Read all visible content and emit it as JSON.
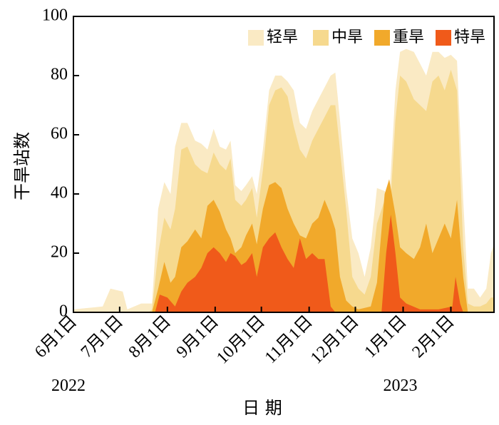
{
  "chart_data": {
    "type": "area",
    "stacked": true,
    "xlabel": "日 期",
    "ylabel": "干旱站数",
    "ylim": [
      0,
      100
    ],
    "yticks": [
      0,
      20,
      40,
      60,
      80,
      100
    ],
    "xlim": [
      "2022-06-01",
      "2023-03-01"
    ],
    "xticks": [
      {
        "date": "2022-06-01",
        "label": "6月1日"
      },
      {
        "date": "2022-07-01",
        "label": "7月1日"
      },
      {
        "date": "2022-08-01",
        "label": "8月1日"
      },
      {
        "date": "2022-09-01",
        "label": "9月1日"
      },
      {
        "date": "2022-10-01",
        "label": "10月1日"
      },
      {
        "date": "2022-11-01",
        "label": "11月1日"
      },
      {
        "date": "2022-12-01",
        "label": "12月1日"
      },
      {
        "date": "2023-01-01",
        "label": "1月1日"
      },
      {
        "date": "2023-02-01",
        "label": "2月1日"
      }
    ],
    "year_labels": [
      {
        "date": "2022-06-01",
        "label": "2022"
      },
      {
        "date": "2023-01-01",
        "label": "2023"
      }
    ],
    "legend_position": "top-right",
    "series": [
      {
        "name": "轻旱",
        "color": "#faeac4",
        "points": [
          [
            "2022-06-01",
            1
          ],
          [
            "2022-06-20",
            2
          ],
          [
            "2022-06-25",
            8
          ],
          [
            "2022-07-03",
            7
          ],
          [
            "2022-07-06",
            1
          ],
          [
            "2022-07-15",
            3
          ],
          [
            "2022-07-22",
            3
          ],
          [
            "2022-07-26",
            35
          ],
          [
            "2022-07-30",
            44
          ],
          [
            "2022-08-03",
            40
          ],
          [
            "2022-08-06",
            56
          ],
          [
            "2022-08-10",
            64
          ],
          [
            "2022-08-14",
            64
          ],
          [
            "2022-08-19",
            58
          ],
          [
            "2022-08-23",
            57
          ],
          [
            "2022-08-27",
            55
          ],
          [
            "2022-08-31",
            62
          ],
          [
            "2022-09-04",
            56
          ],
          [
            "2022-09-08",
            55
          ],
          [
            "2022-09-11",
            58
          ],
          [
            "2022-09-14",
            43
          ],
          [
            "2022-09-18",
            41
          ],
          [
            "2022-09-21",
            43
          ],
          [
            "2022-09-25",
            46
          ],
          [
            "2022-09-28",
            40
          ],
          [
            "2022-10-02",
            55
          ],
          [
            "2022-10-06",
            75
          ],
          [
            "2022-10-10",
            80
          ],
          [
            "2022-10-14",
            80
          ],
          [
            "2022-10-18",
            78
          ],
          [
            "2022-10-22",
            75
          ],
          [
            "2022-10-26",
            64
          ],
          [
            "2022-10-30",
            62
          ],
          [
            "2022-11-03",
            68
          ],
          [
            "2022-11-07",
            72
          ],
          [
            "2022-11-11",
            76
          ],
          [
            "2022-11-15",
            80
          ],
          [
            "2022-11-18",
            81
          ],
          [
            "2022-11-21",
            65
          ],
          [
            "2022-11-25",
            42
          ],
          [
            "2022-11-29",
            25
          ],
          [
            "2022-12-03",
            20
          ],
          [
            "2022-12-07",
            12
          ],
          [
            "2022-12-11",
            22
          ],
          [
            "2022-12-15",
            42
          ],
          [
            "2022-12-20",
            41
          ],
          [
            "2022-12-23",
            38
          ],
          [
            "2022-12-27",
            75
          ],
          [
            "2022-12-30",
            88
          ],
          [
            "2023-01-03",
            89
          ],
          [
            "2023-01-08",
            88
          ],
          [
            "2023-01-12",
            84
          ],
          [
            "2023-01-16",
            80
          ],
          [
            "2023-01-20",
            88
          ],
          [
            "2023-01-24",
            88
          ],
          [
            "2023-01-28",
            86
          ],
          [
            "2023-02-01",
            87
          ],
          [
            "2023-02-05",
            85
          ],
          [
            "2023-02-09",
            38
          ],
          [
            "2023-02-12",
            8
          ],
          [
            "2023-02-16",
            8
          ],
          [
            "2023-02-20",
            5
          ],
          [
            "2023-02-24",
            8
          ],
          [
            "2023-02-27",
            20
          ],
          [
            "2023-03-01",
            23
          ]
        ]
      },
      {
        "name": "中旱",
        "color": "#f6d98e",
        "points": [
          [
            "2022-06-01",
            0
          ],
          [
            "2022-07-20",
            0
          ],
          [
            "2022-07-22",
            1
          ],
          [
            "2022-07-26",
            20
          ],
          [
            "2022-07-30",
            32
          ],
          [
            "2022-08-03",
            28
          ],
          [
            "2022-08-06",
            35
          ],
          [
            "2022-08-10",
            55
          ],
          [
            "2022-08-14",
            56
          ],
          [
            "2022-08-19",
            50
          ],
          [
            "2022-08-23",
            48
          ],
          [
            "2022-08-27",
            47
          ],
          [
            "2022-08-31",
            54
          ],
          [
            "2022-09-04",
            50
          ],
          [
            "2022-09-08",
            48
          ],
          [
            "2022-09-11",
            52
          ],
          [
            "2022-09-14",
            38
          ],
          [
            "2022-09-18",
            36
          ],
          [
            "2022-09-21",
            38
          ],
          [
            "2022-09-25",
            42
          ],
          [
            "2022-09-28",
            32
          ],
          [
            "2022-10-02",
            48
          ],
          [
            "2022-10-06",
            70
          ],
          [
            "2022-10-10",
            75
          ],
          [
            "2022-10-14",
            76
          ],
          [
            "2022-10-18",
            73
          ],
          [
            "2022-10-22",
            63
          ],
          [
            "2022-10-26",
            55
          ],
          [
            "2022-10-30",
            52
          ],
          [
            "2022-11-03",
            58
          ],
          [
            "2022-11-07",
            62
          ],
          [
            "2022-11-11",
            66
          ],
          [
            "2022-11-15",
            70
          ],
          [
            "2022-11-18",
            70
          ],
          [
            "2022-11-21",
            55
          ],
          [
            "2022-11-25",
            35
          ],
          [
            "2022-11-29",
            12
          ],
          [
            "2022-12-03",
            8
          ],
          [
            "2022-12-07",
            6
          ],
          [
            "2022-12-11",
            12
          ],
          [
            "2022-12-15",
            30
          ],
          [
            "2022-12-20",
            38
          ],
          [
            "2022-12-23",
            30
          ],
          [
            "2022-12-27",
            65
          ],
          [
            "2022-12-30",
            80
          ],
          [
            "2023-01-03",
            78
          ],
          [
            "2023-01-08",
            72
          ],
          [
            "2023-01-12",
            70
          ],
          [
            "2023-01-16",
            68
          ],
          [
            "2023-01-20",
            78
          ],
          [
            "2023-01-24",
            80
          ],
          [
            "2023-01-28",
            75
          ],
          [
            "2023-02-01",
            82
          ],
          [
            "2023-02-05",
            75
          ],
          [
            "2023-02-09",
            22
          ],
          [
            "2023-02-12",
            3
          ],
          [
            "2023-02-16",
            2
          ],
          [
            "2023-02-20",
            2
          ],
          [
            "2023-02-24",
            3
          ],
          [
            "2023-02-27",
            5
          ],
          [
            "2023-03-01",
            5
          ]
        ]
      },
      {
        "name": "重旱",
        "color": "#f1a92b",
        "points": [
          [
            "2022-06-01",
            0
          ],
          [
            "2022-07-22",
            0
          ],
          [
            "2022-07-26",
            8
          ],
          [
            "2022-07-30",
            17
          ],
          [
            "2022-08-03",
            10
          ],
          [
            "2022-08-06",
            12
          ],
          [
            "2022-08-10",
            22
          ],
          [
            "2022-08-14",
            24
          ],
          [
            "2022-08-19",
            28
          ],
          [
            "2022-08-23",
            25
          ],
          [
            "2022-08-27",
            36
          ],
          [
            "2022-08-31",
            38
          ],
          [
            "2022-09-04",
            34
          ],
          [
            "2022-09-08",
            28
          ],
          [
            "2022-09-11",
            25
          ],
          [
            "2022-09-14",
            20
          ],
          [
            "2022-09-18",
            22
          ],
          [
            "2022-09-21",
            26
          ],
          [
            "2022-09-25",
            30
          ],
          [
            "2022-09-28",
            23
          ],
          [
            "2022-10-02",
            35
          ],
          [
            "2022-10-06",
            43
          ],
          [
            "2022-10-10",
            44
          ],
          [
            "2022-10-14",
            42
          ],
          [
            "2022-10-18",
            35
          ],
          [
            "2022-10-22",
            30
          ],
          [
            "2022-10-26",
            26
          ],
          [
            "2022-10-30",
            25
          ],
          [
            "2022-11-03",
            30
          ],
          [
            "2022-11-07",
            32
          ],
          [
            "2022-11-11",
            38
          ],
          [
            "2022-11-15",
            33
          ],
          [
            "2022-11-18",
            28
          ],
          [
            "2022-11-21",
            12
          ],
          [
            "2022-11-25",
            4
          ],
          [
            "2022-11-29",
            2
          ],
          [
            "2022-12-03",
            1
          ],
          [
            "2022-12-11",
            2
          ],
          [
            "2022-12-15",
            10
          ],
          [
            "2022-12-20",
            40
          ],
          [
            "2022-12-23",
            45
          ],
          [
            "2022-12-27",
            33
          ],
          [
            "2022-12-30",
            22
          ],
          [
            "2023-01-03",
            20
          ],
          [
            "2023-01-08",
            18
          ],
          [
            "2023-01-12",
            22
          ],
          [
            "2023-01-16",
            30
          ],
          [
            "2023-01-20",
            20
          ],
          [
            "2023-01-24",
            25
          ],
          [
            "2023-01-28",
            30
          ],
          [
            "2023-02-01",
            25
          ],
          [
            "2023-02-05",
            38
          ],
          [
            "2023-02-09",
            12
          ],
          [
            "2023-02-12",
            0
          ],
          [
            "2023-03-01",
            0
          ]
        ]
      },
      {
        "name": "特旱",
        "color": "#f05a1a",
        "points": [
          [
            "2022-06-01",
            0
          ],
          [
            "2022-07-24",
            0
          ],
          [
            "2022-07-27",
            6
          ],
          [
            "2022-08-01",
            5
          ],
          [
            "2022-08-06",
            2
          ],
          [
            "2022-08-10",
            7
          ],
          [
            "2022-08-14",
            10
          ],
          [
            "2022-08-19",
            12
          ],
          [
            "2022-08-23",
            15
          ],
          [
            "2022-08-27",
            20
          ],
          [
            "2022-08-31",
            22
          ],
          [
            "2022-09-04",
            20
          ],
          [
            "2022-09-08",
            17
          ],
          [
            "2022-09-11",
            20
          ],
          [
            "2022-09-14",
            19
          ],
          [
            "2022-09-18",
            16
          ],
          [
            "2022-09-21",
            17
          ],
          [
            "2022-09-25",
            20
          ],
          [
            "2022-09-28",
            12
          ],
          [
            "2022-10-02",
            22
          ],
          [
            "2022-10-06",
            25
          ],
          [
            "2022-10-10",
            27
          ],
          [
            "2022-10-14",
            22
          ],
          [
            "2022-10-18",
            18
          ],
          [
            "2022-10-22",
            15
          ],
          [
            "2022-10-26",
            25
          ],
          [
            "2022-10-30",
            18
          ],
          [
            "2022-11-03",
            20
          ],
          [
            "2022-11-07",
            18
          ],
          [
            "2022-11-11",
            18
          ],
          [
            "2022-11-15",
            2
          ],
          [
            "2022-11-18",
            0
          ],
          [
            "2022-12-18",
            0
          ],
          [
            "2022-12-21",
            20
          ],
          [
            "2022-12-24",
            33
          ],
          [
            "2022-12-27",
            20
          ],
          [
            "2022-12-30",
            5
          ],
          [
            "2023-01-03",
            3
          ],
          [
            "2023-01-12",
            1
          ],
          [
            "2023-01-24",
            1
          ],
          [
            "2023-02-02",
            2
          ],
          [
            "2023-02-04",
            12
          ],
          [
            "2023-02-07",
            3
          ],
          [
            "2023-02-09",
            0
          ],
          [
            "2023-03-01",
            0
          ]
        ]
      }
    ]
  }
}
